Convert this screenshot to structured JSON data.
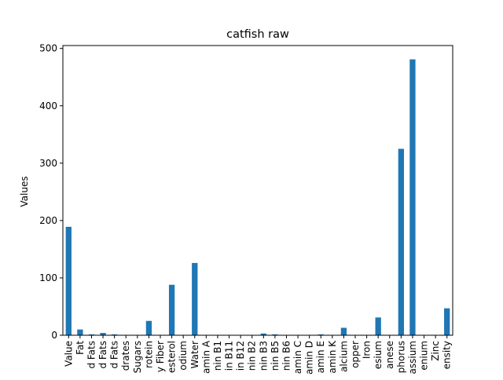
{
  "chart_data": {
    "type": "bar",
    "title": "catfish raw",
    "xlabel": "",
    "ylabel": "Values",
    "ylim": [
      0,
      500
    ],
    "yticks": [
      0,
      100,
      200,
      300,
      400,
      500
    ],
    "grid": false,
    "legend": "none",
    "bar_color": "#1f77b4",
    "categories": [
      "Value",
      "Fat",
      "d Fats",
      "d Fats",
      "d Fats",
      "drates",
      "Sugars",
      "rotein",
      "y Fiber",
      "esterol",
      "odium",
      "Water",
      "amin A",
      "nin B1",
      "in B11",
      "in B12",
      "nin B2",
      "nin B3",
      "nin B5",
      "nin B6",
      "amin C",
      "amin D",
      "amin E",
      "amin K",
      "alcium",
      "opper",
      "Iron",
      "esium",
      "anese",
      "phorus",
      "assium",
      "enium",
      "Zinc",
      "ensity"
    ],
    "values": [
      189,
      10,
      1.5,
      4,
      1.5,
      0,
      0,
      25,
      0,
      88,
      0,
      126,
      0,
      0,
      0,
      0,
      0,
      3,
      1.5,
      0,
      0,
      0,
      1.5,
      0,
      13,
      0,
      0,
      31,
      0,
      325,
      481,
      0,
      0,
      47
    ]
  }
}
